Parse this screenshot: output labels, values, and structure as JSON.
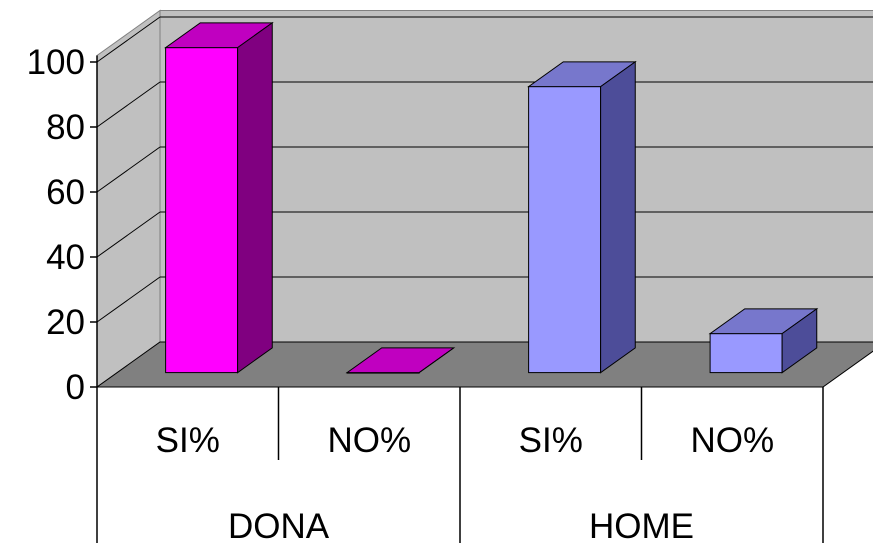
{
  "chart_data": {
    "type": "bar",
    "style": "3d-column",
    "groups": [
      {
        "label": "DONA",
        "categories": [
          "SI%",
          "NO%"
        ],
        "values": [
          100,
          0
        ]
      },
      {
        "label": "HOME",
        "categories": [
          "SI%",
          "NO%"
        ],
        "values": [
          88,
          12
        ]
      }
    ],
    "y_ticks": [
      "0",
      "20",
      "40",
      "60",
      "80",
      "100"
    ],
    "ylim": [
      0,
      100
    ],
    "grid": true,
    "legend": "none",
    "colors": {
      "dona_front": "#ff00ff",
      "dona_top": "#c000c0",
      "dona_side": "#800080",
      "home_front": "#9999ff",
      "home_top": "#7777cc",
      "home_side": "#4d4d99",
      "back_wall": "#c0c0c0",
      "floor": "#808080",
      "side_wall": "#c0c0c0"
    }
  }
}
